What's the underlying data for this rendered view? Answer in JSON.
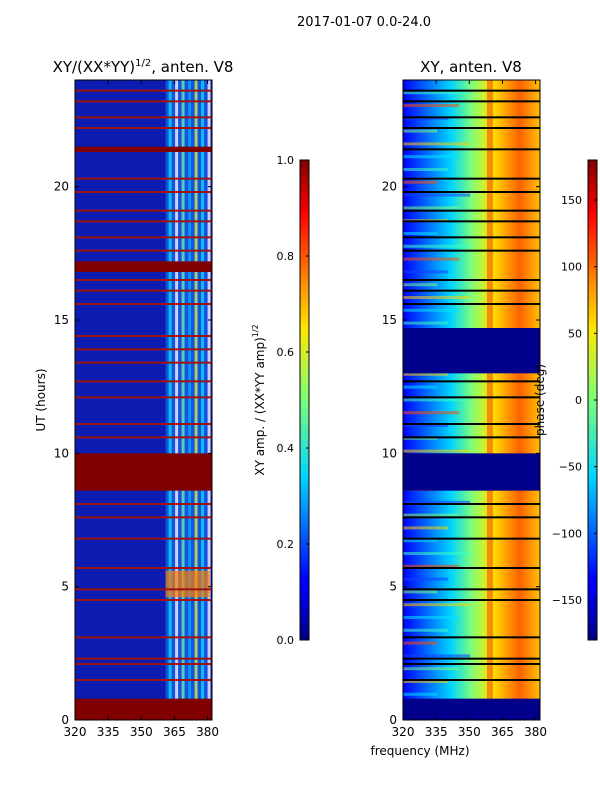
{
  "suptitle": "2017-01-07 0.0-24.0",
  "xlabel": "frequency (MHz)",
  "chart_data": [
    {
      "type": "heatmap",
      "title": "XY/(XX*YY)",
      "title_exp": "1/2",
      "title_suffix": ", anten. V8",
      "ylabel": "UT (hours)",
      "xlim": [
        320,
        382
      ],
      "ylim": [
        0,
        24
      ],
      "xticks": [
        "320",
        "335",
        "350",
        "365",
        "380"
      ],
      "yticks": [
        "0",
        "5",
        "10",
        "15",
        "20"
      ],
      "colorbar": {
        "label": "XY amp. / (XX*YY amp)",
        "label_exp": "1/2",
        "range": [
          0.0,
          1.0
        ],
        "ticks": [
          "0.0",
          "0.2",
          "0.4",
          "0.6",
          "0.8",
          "1.0"
        ]
      },
      "flagged_blocks_hours": [
        [
          0,
          0.8
        ],
        [
          8.6,
          10
        ],
        [
          16.8,
          17.2
        ],
        [
          21.3,
          21.5
        ]
      ],
      "flagged_lines_hours": [
        1.5,
        2.1,
        2.3,
        3.1,
        4.5,
        4.9,
        5.7,
        6.8,
        7.6,
        8.1,
        10.6,
        11.1,
        12.1,
        12.7,
        13.4,
        13.9,
        14.4,
        15.6,
        16.1,
        16.5,
        17.6,
        18.1,
        18.7,
        19.1,
        19.8,
        20.3,
        22.2,
        22.6,
        23.2,
        23.6
      ],
      "active_band_mhz": [
        361,
        381
      ]
    },
    {
      "type": "heatmap",
      "title": "XY, anten. V8",
      "ylabel": "",
      "xlim": [
        320,
        382
      ],
      "ylim": [
        0,
        24
      ],
      "xticks": [
        "320",
        "335",
        "350",
        "365",
        "380"
      ],
      "yticks": [
        "0",
        "5",
        "10",
        "15",
        "20"
      ],
      "colorbar": {
        "label": "phase (deg)",
        "range": [
          -180,
          180
        ],
        "ticks": [
          "−150",
          "−100",
          "−50",
          "0",
          "50",
          "100",
          "150"
        ]
      },
      "flagged_blocks_hours": [
        [
          0,
          0.8
        ],
        [
          8.6,
          10
        ],
        [
          13.0,
          14.7
        ]
      ],
      "flagged_lines_hours": [
        1.5,
        2.1,
        2.3,
        3.1,
        4.5,
        4.9,
        5.7,
        6.8,
        7.6,
        8.1,
        10.6,
        11.1,
        12.1,
        12.7,
        15.6,
        16.1,
        16.5,
        17.6,
        18.1,
        18.7,
        19.1,
        19.8,
        20.3,
        21.4,
        22.2,
        22.6,
        23.2,
        23.6
      ],
      "active_band_mhz": [
        320,
        382
      ]
    }
  ]
}
